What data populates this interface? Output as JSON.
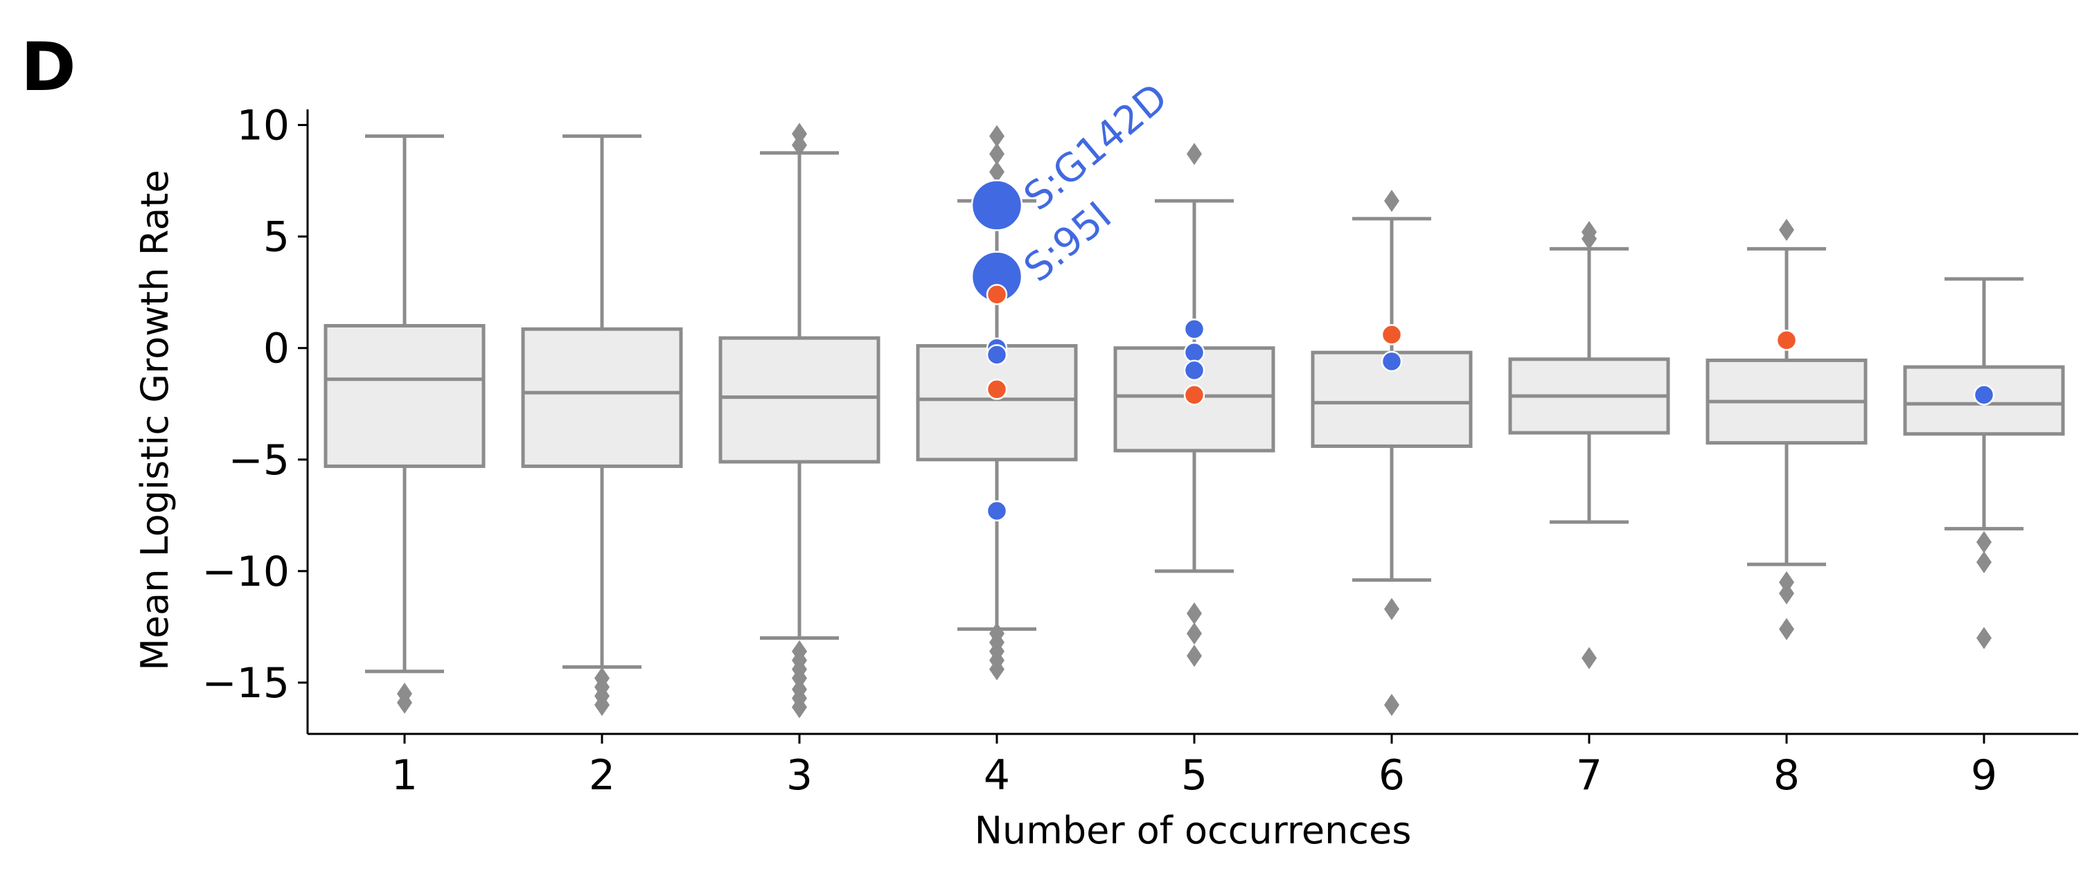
{
  "panel_label": "D",
  "chart_data": {
    "type": "box",
    "xlabel": "Number of occurrences",
    "ylabel": "Mean Logistic Growth Rate",
    "categories": [
      "1",
      "2",
      "3",
      "4",
      "5",
      "6",
      "7",
      "8",
      "9"
    ],
    "ylim": [
      -17.3,
      10.7
    ],
    "yticks": [
      10,
      5,
      0,
      -5,
      -10,
      -15
    ],
    "yticklabels": [
      "10",
      "5",
      "0",
      "−5",
      "−10",
      "−15"
    ],
    "grid": false,
    "box_color": "#ececec",
    "line_color": "#8c8c8c",
    "boxes": [
      {
        "category": "1",
        "whisker_low": -14.5,
        "q1": -5.3,
        "median": -1.4,
        "q3": 1.0,
        "whisker_high": 9.5,
        "outliers": [
          -15.5,
          -15.9
        ]
      },
      {
        "category": "2",
        "whisker_low": -14.3,
        "q1": -5.3,
        "median": -2.0,
        "q3": 0.85,
        "whisker_high": 9.5,
        "outliers": [
          -14.8,
          -15.2,
          -15.6,
          -16.0
        ]
      },
      {
        "category": "3",
        "whisker_low": -13.0,
        "q1": -5.1,
        "median": -2.2,
        "q3": 0.45,
        "whisker_high": 8.75,
        "outliers": [
          9.6,
          9.1,
          -13.6,
          -14.0,
          -14.4,
          -14.8,
          -15.3,
          -15.7,
          -16.1
        ]
      },
      {
        "category": "4",
        "whisker_low": -12.6,
        "q1": -5.0,
        "median": -2.3,
        "q3": 0.1,
        "whisker_high": 6.6,
        "outliers": [
          9.5,
          8.7,
          7.9,
          -12.8,
          -13.2,
          -13.6,
          -14.0,
          -14.4
        ]
      },
      {
        "category": "5",
        "whisker_low": -10.0,
        "q1": -4.6,
        "median": -2.15,
        "q3": 0.0,
        "whisker_high": 6.6,
        "outliers": [
          8.7,
          -11.9,
          -12.8,
          -13.8
        ]
      },
      {
        "category": "6",
        "whisker_low": -10.4,
        "q1": -4.4,
        "median": -2.45,
        "q3": -0.2,
        "whisker_high": 5.8,
        "outliers": [
          6.6,
          -11.7,
          -16.0
        ]
      },
      {
        "category": "7",
        "whisker_low": -7.8,
        "q1": -3.8,
        "median": -2.15,
        "q3": -0.5,
        "whisker_high": 4.45,
        "outliers": [
          5.2,
          4.9,
          -13.9
        ]
      },
      {
        "category": "8",
        "whisker_low": -9.7,
        "q1": -4.25,
        "median": -2.4,
        "q3": -0.55,
        "whisker_high": 4.45,
        "outliers": [
          5.3,
          -10.5,
          -11.0,
          -12.6
        ]
      },
      {
        "category": "9",
        "whisker_low": -8.1,
        "q1": -3.85,
        "median": -2.5,
        "q3": -0.85,
        "whisker_high": 3.1,
        "outliers": [
          -8.7,
          -9.6,
          -13.0
        ]
      }
    ],
    "highlight_series": [
      {
        "color": "#4169e1",
        "points": [
          {
            "category": "4",
            "y": 6.4,
            "size": "large"
          },
          {
            "category": "4",
            "y": 3.2,
            "size": "large"
          },
          {
            "category": "4",
            "y": 0.0,
            "size": "small"
          },
          {
            "category": "4",
            "y": -0.3,
            "size": "small"
          },
          {
            "category": "4",
            "y": -7.3,
            "size": "small"
          },
          {
            "category": "5",
            "y": 0.85,
            "size": "small"
          },
          {
            "category": "5",
            "y": -0.2,
            "size": "small"
          },
          {
            "category": "5",
            "y": -1.0,
            "size": "small"
          },
          {
            "category": "6",
            "y": -0.6,
            "size": "small"
          },
          {
            "category": "9",
            "y": -2.1,
            "size": "small"
          }
        ]
      },
      {
        "color": "#f05a2a",
        "points": [
          {
            "category": "4",
            "y": 2.4,
            "size": "small"
          },
          {
            "category": "4",
            "y": -1.85,
            "size": "small"
          },
          {
            "category": "5",
            "y": -2.1,
            "size": "small"
          },
          {
            "category": "6",
            "y": 0.6,
            "size": "small"
          },
          {
            "category": "8",
            "y": 0.35,
            "size": "small"
          }
        ]
      }
    ],
    "annotations": [
      {
        "text": "S:G142D",
        "category": "4",
        "y": 6.4,
        "color": "#4169e1"
      },
      {
        "text": "S:95I",
        "category": "4",
        "y": 3.2,
        "color": "#4169e1"
      }
    ]
  }
}
